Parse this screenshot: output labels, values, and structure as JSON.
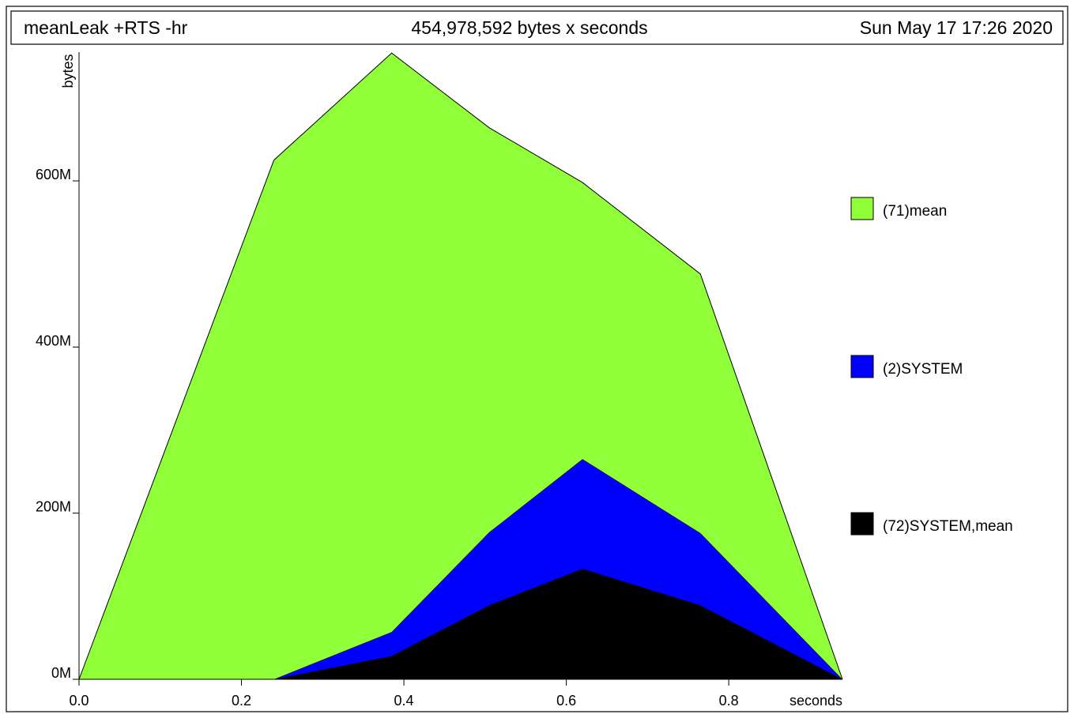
{
  "header": {
    "program": "meanLeak +RTS -hr",
    "total": "454,978,592 bytes x seconds",
    "date": "Sun May 17 17:26 2020"
  },
  "chart_data": {
    "type": "area",
    "stacked": true,
    "xlabel": "seconds",
    "ylabel": "bytes",
    "xlim": [
      0,
      0.94
    ],
    "ylim": [
      0,
      755000000
    ],
    "x_ticks": [
      0.0,
      0.2,
      0.4,
      0.6,
      0.8
    ],
    "x_tick_labels": [
      "0.0",
      "0.2",
      "0.4",
      "0.6",
      "0.8"
    ],
    "y_ticks": [
      0,
      200000000,
      400000000,
      600000000
    ],
    "y_tick_labels": [
      "0M",
      "200M",
      "400M",
      "600M"
    ],
    "x": [
      0.0,
      0.24,
      0.385,
      0.505,
      0.62,
      0.765,
      0.94
    ],
    "series": [
      {
        "name": "(72)SYSTEM,mean",
        "color": "#000000",
        "values": [
          0,
          0,
          28000000,
          89000000,
          133000000,
          89000000,
          0
        ]
      },
      {
        "name": "(2)SYSTEM",
        "color": "#0000ff",
        "values": [
          0,
          0,
          29000000,
          88000000,
          132000000,
          87000000,
          0
        ]
      },
      {
        "name": "(71)mean",
        "color": "#90ff3a",
        "values": [
          0,
          625000000,
          697000000,
          487000000,
          333000000,
          312000000,
          0
        ]
      }
    ],
    "legend": {
      "placement": "right",
      "order": [
        "(71)mean",
        "(2)SYSTEM",
        "(72)SYSTEM,mean"
      ]
    },
    "grid": false
  }
}
